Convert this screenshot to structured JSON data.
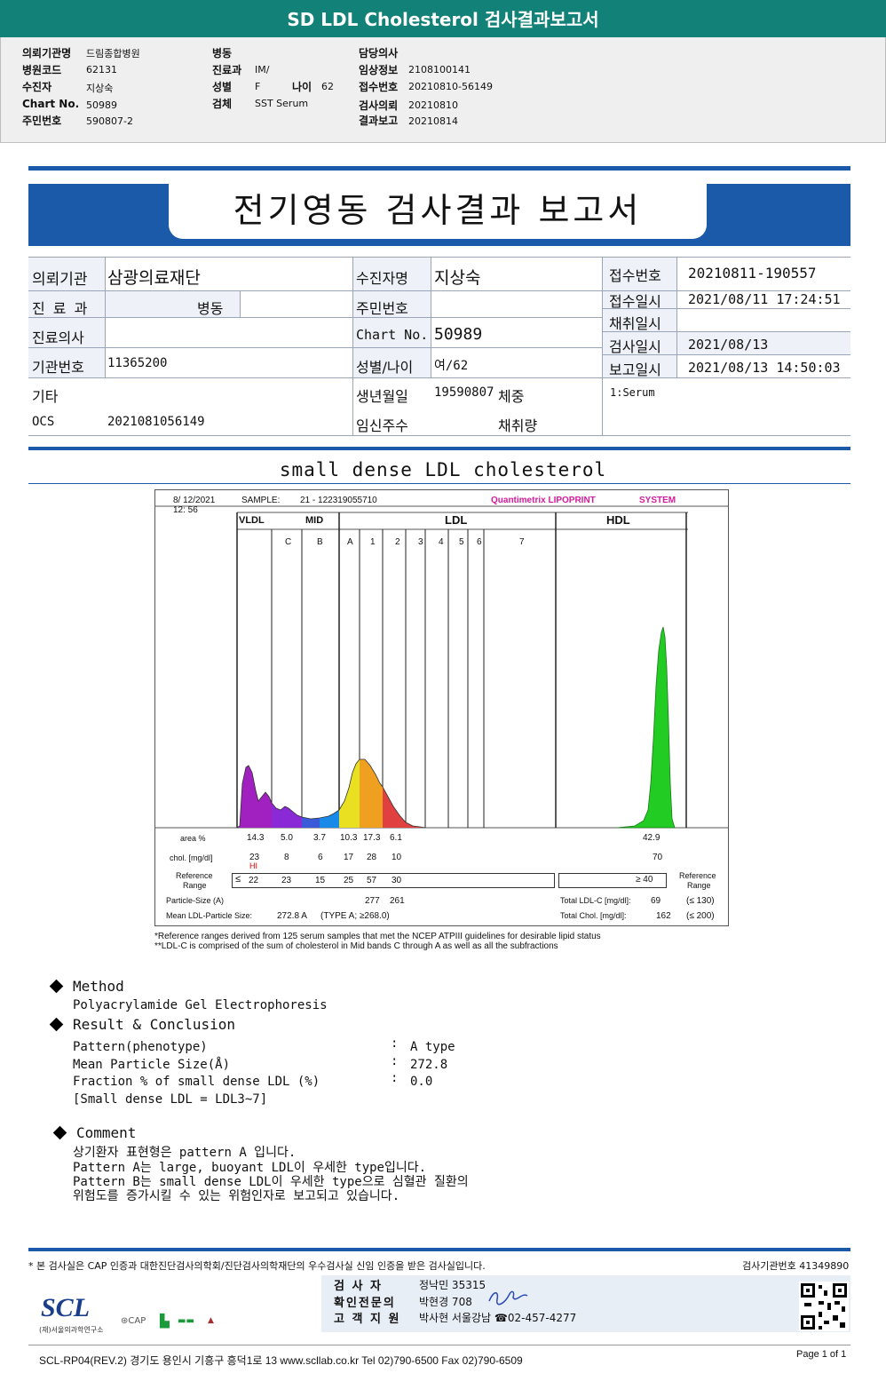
{
  "banner_title": "SD LDL Cholesterol 검사결과보고서",
  "header": {
    "col1": [
      {
        "label": "의뢰기관명",
        "value": "드림종합병원"
      },
      {
        "label": "병원코드",
        "value": "62131"
      },
      {
        "label": "수진자",
        "value": "지상숙"
      },
      {
        "label": "Chart No.",
        "value": "50989"
      },
      {
        "label": "주민번호",
        "value": "590807-2"
      }
    ],
    "col2": [
      {
        "label": "병동",
        "value": ""
      },
      {
        "label": "진료과",
        "value": "IM/"
      },
      {
        "label": "성별",
        "value": "F"
      },
      {
        "label": "검체",
        "value": "SST Serum"
      }
    ],
    "age_label": "나이",
    "age_value": "62",
    "col3": [
      {
        "label": "담당의사",
        "value": ""
      },
      {
        "label": "임상정보",
        "value": "2108100141"
      },
      {
        "label": "접수번호",
        "value": "20210810-56149"
      },
      {
        "label": "검사의뢰",
        "value": "20210810"
      },
      {
        "label": "결과보고",
        "value": "20210814"
      }
    ]
  },
  "report_title": "전기영동 검사결과 보고서",
  "info": {
    "inst_label": "의뢰기관",
    "inst_value": "삼광의료재단",
    "dept_label": "진 료 과",
    "dept_value": "병동",
    "doctor_label": "진료의사",
    "instno_label": "기관번호",
    "instno_value": "11365200",
    "etc_label": "기타",
    "ocs_label": "OCS",
    "ocs_value": "2021081056149",
    "pt_label": "수진자명",
    "pt_value": "지상숙",
    "rrn_label": "주민번호",
    "rrn_value": "",
    "chart_label": "Chart No.",
    "chart_value": "50989",
    "sex_label": "성별/나이",
    "sex_value": "여/62",
    "birth_label": "생년월일",
    "birth_value": "19590807",
    "weight_label": "체중",
    "preg_label": "임신주수",
    "vol_label": "채취량",
    "recno_label": "접수번호",
    "recno_value": "20210811-190557",
    "recdt_label": "접수일시",
    "recdt_value": "2021/08/11 17:24:51",
    "coll_label": "채취일시",
    "coll_value": "",
    "test_label": "검사일시",
    "test_value": "2021/08/13",
    "rep_label": "보고일시",
    "rep_value": "2021/08/13 14:50:03",
    "specimen": "1:Serum"
  },
  "section_title": "small dense LDL cholesterol",
  "chart_data": {
    "type": "area",
    "date": "8/ 12/2021",
    "time": "12: 56",
    "sample_label": "SAMPLE:",
    "sample_value": "21 - 122319055710",
    "brand": "Quantimetrix LIPOPRINT",
    "brand_suffix": "SYSTEM",
    "groups": [
      "VLDL",
      "MID",
      "LDL",
      "HDL"
    ],
    "bands": [
      "C",
      "B",
      "A",
      "1",
      "2",
      "3",
      "4",
      "5",
      "6",
      "7"
    ],
    "series": [
      {
        "band": "VLDL",
        "color": "#a020c0"
      },
      {
        "band": "C",
        "color": "#8a2ad6"
      },
      {
        "band": "B",
        "color": "#3a5ad8"
      },
      {
        "band": "A",
        "color": "#1a8ae8"
      },
      {
        "band": "1",
        "color": "#e8e020"
      },
      {
        "band": "2",
        "color": "#f0a020"
      },
      {
        "band": "3",
        "color": "#e04040"
      },
      {
        "band": "HDL",
        "color": "#22cc22"
      }
    ],
    "rows": {
      "area_label": "area %",
      "area": [
        "14.3",
        "5.0",
        "3.7",
        "10.3",
        "17.3",
        "6.1"
      ],
      "area_hdl": "42.9",
      "chol_label": "chol. [mg/dl]",
      "chol": [
        "23",
        "8",
        "6",
        "17",
        "28",
        "10"
      ],
      "chol_hdl": "70",
      "flag": "HI",
      "ref_label_1": "Reference",
      "ref_label_2": "Range",
      "ref_le": "≤",
      "ref": [
        "22",
        "23",
        "15",
        "25",
        "57",
        "30"
      ],
      "ref_hdl": "≥  40",
      "ref_right_1": "Reference",
      "ref_right_2": "Range",
      "psize_label": "Particle-Size (A)",
      "psize": [
        "277",
        "261"
      ],
      "mean_label": "Mean LDL-Particle Size:",
      "mean_value": "272.8 A",
      "mean_type": "(TYPE A; ≥268.0)",
      "ldlc_label": "Total LDL-C [mg/dl]:",
      "ldlc_value": "69",
      "ldlc_ref": "(≤ 130)",
      "tchol_label": "Total Chol. [mg/dl]:",
      "tchol_value": "162",
      "tchol_ref": "(≤ 200)"
    }
  },
  "footnotes": [
    "*Reference ranges derived from 125 serum samples that met the NCEP ATPIII guidelines for desirable lipid status",
    "**LDL-C is comprised of the sum of cholesterol in Mid bands C through A as well as all the subfractions"
  ],
  "method": {
    "title": "Method",
    "text": "Polyacrylamide Gel Electrophoresis"
  },
  "result": {
    "title": "Result & Conclusion",
    "items": [
      {
        "label": "Pattern(phenotype)",
        "value": "A type"
      },
      {
        "label": "Mean Particle Size(Å)",
        "value": "272.8"
      },
      {
        "label": "Fraction % of small dense LDL (%)",
        "value": "0.0"
      }
    ],
    "note": "[Small dense LDL = LDL3~7]"
  },
  "comment": {
    "title": "Comment",
    "lines": [
      "상기환자 표현형은 pattern A 입니다.",
      "Pattern A는 large, buoyant LDL이 우세한 type입니다.",
      "Pattern B는 small dense LDL이 우세한 type으로 심혈관 질환의",
      "위험도를 증가시킬 수 있는 위험인자로 보고되고 있습니다."
    ]
  },
  "footer": {
    "cert": "* 본 검사실은 CAP 인증과 대한진단검사의학회/진단검사의학재단의 우수검사실 신임 인증을 받은 검사실입니다.",
    "instno": "검사기관번호 41349890",
    "tester_label": "검   사   자",
    "tester": "정낙민 35315",
    "expert_label": "확인전문의",
    "expert": "박현경 708",
    "service_label": "고 객 지 원",
    "service": "박사현 서울강남 ☎02-457-4277",
    "logo": "SCL",
    "logo_sub": "(재)서울의과학연구소",
    "address": "SCL-RP04(REV.2)  경기도 용인시 기흥구 흥덕1로 13  www.scllab.co.kr  Tel 02)790-6500  Fax 02)790-6509",
    "page": "Page 1 of 1"
  }
}
